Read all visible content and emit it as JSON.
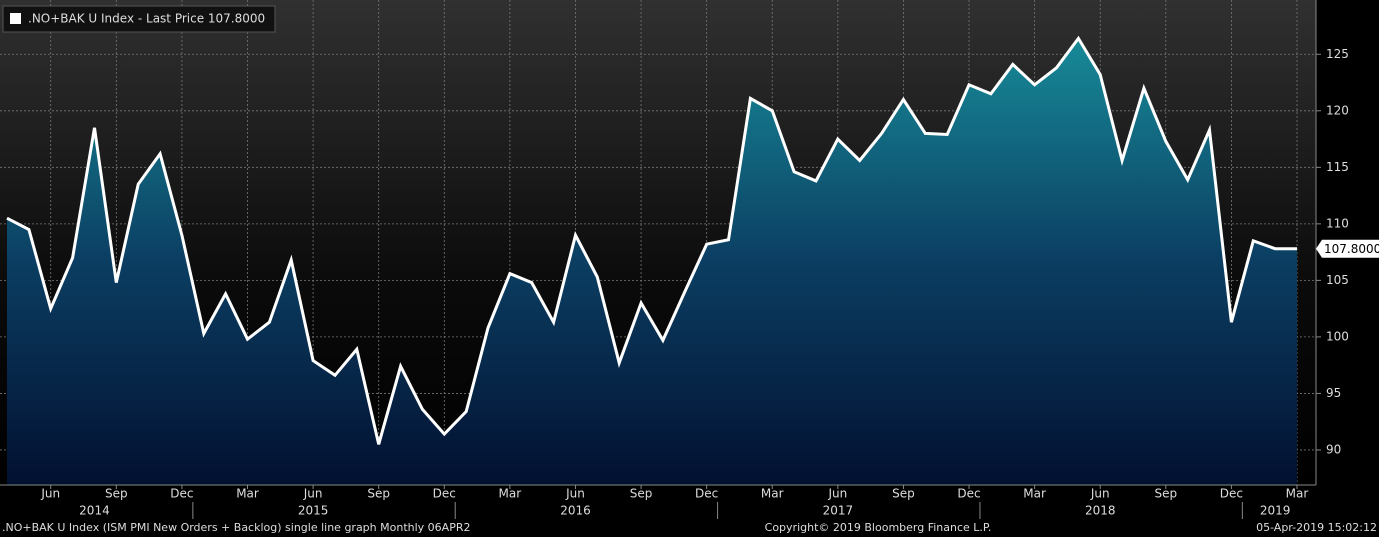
{
  "chart_data": {
    "type": "area",
    "legend": ".NO+BAK U Index - Last Price 107.8000",
    "last_price_label": "107.8000",
    "footer_left": ".NO+BAK U Index (ISM PMI New Orders + Backlog) single line graph  Monthly 06APR2",
    "footer_center": "Copyright© 2019 Bloomberg Finance L.P.",
    "footer_right": "05-Apr-2019 15:02:12",
    "x": [
      "2014-04",
      "2014-05",
      "2014-06",
      "2014-07",
      "2014-08",
      "2014-09",
      "2014-10",
      "2014-11",
      "2014-12",
      "2015-01",
      "2015-02",
      "2015-03",
      "2015-04",
      "2015-05",
      "2015-06",
      "2015-07",
      "2015-08",
      "2015-09",
      "2015-10",
      "2015-11",
      "2015-12",
      "2016-01",
      "2016-02",
      "2016-03",
      "2016-04",
      "2016-05",
      "2016-06",
      "2016-07",
      "2016-08",
      "2016-09",
      "2016-10",
      "2016-11",
      "2016-12",
      "2017-01",
      "2017-02",
      "2017-03",
      "2017-04",
      "2017-05",
      "2017-06",
      "2017-07",
      "2017-08",
      "2017-09",
      "2017-10",
      "2017-11",
      "2017-12",
      "2018-01",
      "2018-02",
      "2018-03",
      "2018-04",
      "2018-05",
      "2018-06",
      "2018-07",
      "2018-08",
      "2018-09",
      "2018-10",
      "2018-11",
      "2018-12",
      "2019-01",
      "2019-02",
      "2019-03"
    ],
    "series": [
      {
        "name": ".NO+BAK U Index",
        "color": "#ffffff",
        "values": [
          110.5,
          109.5,
          102.5,
          107,
          118.5,
          104.8,
          113.5,
          116.2,
          109,
          100.3,
          103.8,
          99.8,
          101.3,
          106.8,
          97.9,
          96.6,
          98.9,
          90.5,
          97.4,
          93.6,
          91.4,
          93.4,
          100.8,
          105.6,
          104.8,
          101.3,
          109,
          105.3,
          97.7,
          103,
          99.7,
          104,
          108.2,
          108.6,
          121.1,
          120,
          114.6,
          113.8,
          117.5,
          115.6,
          118,
          121,
          118,
          117.9,
          122.3,
          121.5,
          124.1,
          122.3,
          123.8,
          126.4,
          123.2,
          115.6,
          122,
          117.3,
          113.9,
          118.3,
          101.3,
          108.5,
          107.8,
          107.8
        ]
      }
    ],
    "ylim": [
      86.9,
      129.8
    ],
    "yticks": [
      90,
      95,
      100,
      105,
      110,
      115,
      120,
      125
    ],
    "xticks": [
      {
        "value": "2014-06",
        "label": "Jun"
      },
      {
        "value": "2014-09",
        "label": "Sep"
      },
      {
        "value": "2014-12",
        "label": "Dec"
      },
      {
        "value": "2015-03",
        "label": "Mar"
      },
      {
        "value": "2015-06",
        "label": "Jun"
      },
      {
        "value": "2015-09",
        "label": "Sep"
      },
      {
        "value": "2015-12",
        "label": "Dec"
      },
      {
        "value": "2016-03",
        "label": "Mar"
      },
      {
        "value": "2016-06",
        "label": "Jun"
      },
      {
        "value": "2016-09",
        "label": "Sep"
      },
      {
        "value": "2016-12",
        "label": "Dec"
      },
      {
        "value": "2017-03",
        "label": "Mar"
      },
      {
        "value": "2017-06",
        "label": "Jun"
      },
      {
        "value": "2017-09",
        "label": "Sep"
      },
      {
        "value": "2017-12",
        "label": "Dec"
      },
      {
        "value": "2018-03",
        "label": "Mar"
      },
      {
        "value": "2018-06",
        "label": "Jun"
      },
      {
        "value": "2018-09",
        "label": "Sep"
      },
      {
        "value": "2018-12",
        "label": "Dec"
      },
      {
        "value": "2019-03",
        "label": "Mar"
      }
    ],
    "year_labels": [
      {
        "value": "2014-08",
        "label": "2014"
      },
      {
        "value": "2015-06",
        "label": "2015"
      },
      {
        "value": "2016-06",
        "label": "2016"
      },
      {
        "value": "2017-06",
        "label": "2017"
      },
      {
        "value": "2018-06",
        "label": "2018"
      },
      {
        "value": "2019-02",
        "label": "2019"
      }
    ],
    "grid": true
  }
}
